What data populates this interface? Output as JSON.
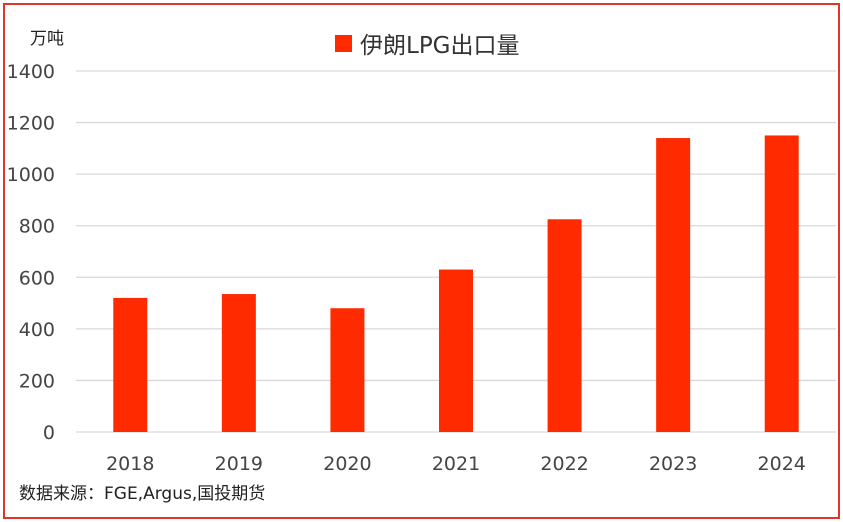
{
  "chart_data": {
    "type": "bar",
    "title": "",
    "ylabel": "万吨",
    "xlabel": "",
    "categories": [
      "2018",
      "2019",
      "2020",
      "2021",
      "2022",
      "2023",
      "2024"
    ],
    "series": [
      {
        "name": "伊朗LPG出口量",
        "color": "#ff2a00",
        "values": [
          520,
          535,
          480,
          630,
          825,
          1140,
          1150
        ]
      }
    ],
    "ylim": [
      0,
      1400
    ],
    "yticks": [
      0,
      200,
      400,
      600,
      800,
      1000,
      1200,
      1400
    ],
    "grid": true,
    "legend_position": "top-center"
  },
  "source_note": "数据来源：FGE,Argus,国投期货",
  "colors": {
    "border": "#e0352b",
    "grid": "#d9d9d9",
    "bar": "#ff2a00"
  }
}
